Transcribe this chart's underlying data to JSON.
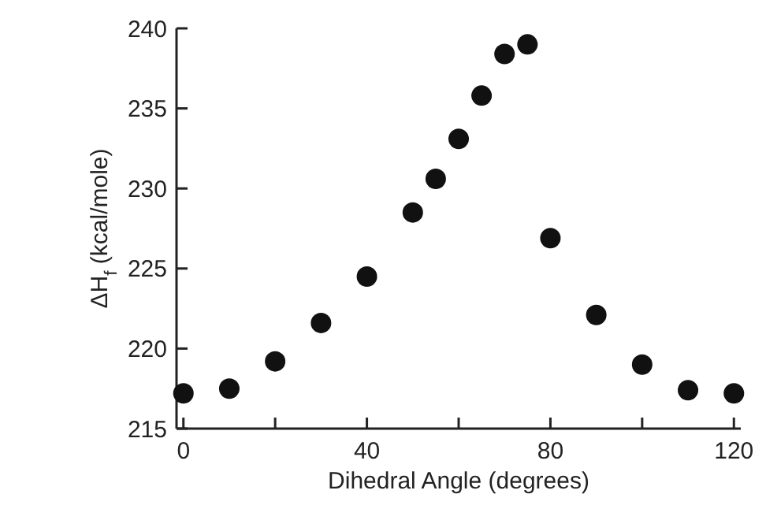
{
  "chart_data": {
    "type": "scatter",
    "xlabel": "Dihedral Angle (degrees)",
    "ylabel": "ΔH$_{f}$  (kcal/mole)",
    "x": [
      0,
      10,
      20,
      30,
      40,
      50,
      55,
      60,
      65,
      70,
      75,
      80,
      90,
      100,
      110,
      120
    ],
    "values": [
      217.2,
      217.5,
      219.2,
      221.6,
      224.5,
      228.5,
      230.6,
      233.1,
      235.8,
      238.4,
      239.0,
      226.9,
      222.1,
      219.0,
      217.4,
      217.2
    ],
    "color": "#111111",
    "marker": "circle",
    "xlim": [
      -1.5,
      121.5
    ],
    "ylim": [
      215,
      240
    ],
    "xticks": [
      0,
      {
        "value": 20,
        "label": null
      },
      40,
      {
        "value": 60,
        "label": null
      },
      80,
      {
        "value": 100,
        "label": null
      },
      120
    ],
    "yticks": [
      215,
      220,
      225,
      230,
      235,
      240
    ],
    "grid": false
  }
}
